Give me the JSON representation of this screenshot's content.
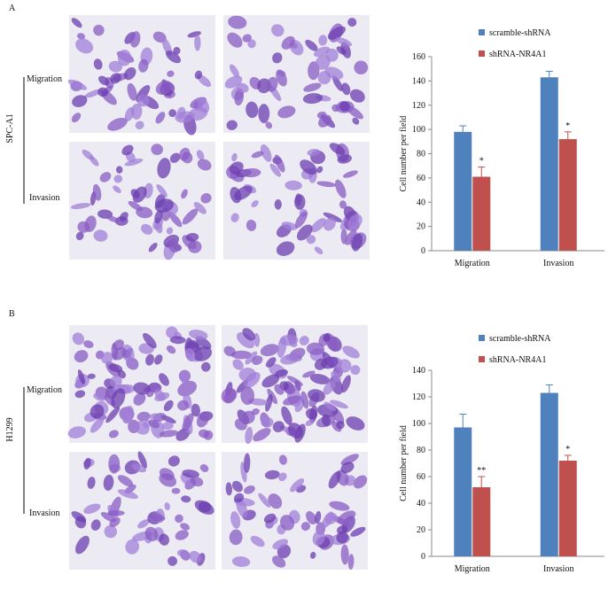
{
  "panels": [
    {
      "label": "A",
      "cell_line": "SPC-A1",
      "rows": [
        "Migration",
        "Invasion"
      ]
    },
    {
      "label": "B",
      "cell_line": "H1299",
      "rows": [
        "Migration",
        "Invasion"
      ]
    }
  ],
  "chart_data": [
    {
      "type": "bar",
      "y_label": "Cell number per field",
      "categories": [
        "Migration",
        "Invasion"
      ],
      "ylim": [
        0,
        160
      ],
      "yticks": [
        0,
        20,
        40,
        60,
        80,
        100,
        120,
        140,
        160
      ],
      "series": [
        {
          "name": "scramble-shRNA",
          "color": "#4f81bd",
          "values": [
            98,
            143
          ],
          "errors": [
            5,
            5
          ]
        },
        {
          "name": "shRNA-NR4A1",
          "color": "#c0504d",
          "values": [
            61,
            92
          ],
          "errors": [
            8,
            6
          ],
          "significance": [
            "*",
            "*"
          ]
        }
      ]
    },
    {
      "type": "bar",
      "y_label": "Cell number per field",
      "categories": [
        "Migration",
        "Invasion"
      ],
      "ylim": [
        0,
        140
      ],
      "yticks": [
        0,
        20,
        40,
        60,
        80,
        100,
        120,
        140
      ],
      "series": [
        {
          "name": "scramble-shRNA",
          "color": "#4f81bd",
          "values": [
            97,
            123
          ],
          "errors": [
            10,
            6
          ]
        },
        {
          "name": "shRNA-NR4A1",
          "color": "#c0504d",
          "values": [
            52,
            72
          ],
          "errors": [
            8,
            4
          ],
          "significance": [
            "**",
            "*"
          ]
        }
      ]
    }
  ]
}
